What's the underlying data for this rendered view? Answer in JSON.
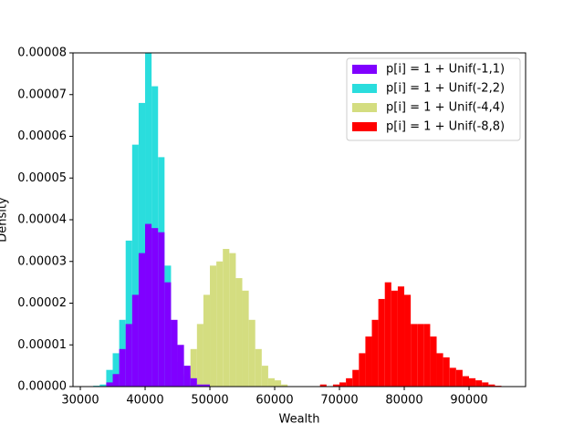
{
  "chart_data": {
    "type": "histogram",
    "x_label": "Wealth",
    "y_label": "Density",
    "xlim": [
      28870,
      98730
    ],
    "ylim": [
      0,
      8e-05
    ],
    "xticks": [
      30000,
      40000,
      50000,
      60000,
      70000,
      80000,
      90000
    ],
    "yticks": [
      {
        "value": 0,
        "label": "0.00000"
      },
      {
        "value": 1e-05,
        "label": "0.00001"
      },
      {
        "value": 2e-05,
        "label": "0.00002"
      },
      {
        "value": 3e-05,
        "label": "0.00003"
      },
      {
        "value": 4e-05,
        "label": "0.00004"
      },
      {
        "value": 5e-05,
        "label": "0.00005"
      },
      {
        "value": 6e-05,
        "label": "0.00006"
      },
      {
        "value": 7e-05,
        "label": "0.00007"
      },
      {
        "value": 8e-05,
        "label": "0.00008"
      }
    ],
    "legend": "upper right",
    "series": [
      {
        "name": "p[i] = 1 + Unif(-1,1)",
        "color": "#8000ff",
        "bins": [
          34000,
          35000,
          36000,
          37000,
          38000,
          39000,
          40000,
          41000,
          42000,
          43000,
          44000,
          45000,
          46000,
          47000,
          48000,
          49000,
          50000
        ],
        "values": [
          1e-06,
          3e-06,
          9e-06,
          1.5e-05,
          2.2e-05,
          3.2e-05,
          3.9e-05,
          3.8e-05,
          3.7e-05,
          2.5e-05,
          1.6e-05,
          1e-05,
          5e-06,
          2e-06,
          5e-07,
          5e-07
        ]
      },
      {
        "name": "p[i] = 1 + Unif(-2,2)",
        "color": "#2adddd",
        "bins": [
          32000,
          33000,
          34000,
          35000,
          36000,
          37000,
          38000,
          39000,
          40000,
          41000,
          42000,
          43000,
          44000,
          45000,
          46000,
          47000,
          48000
        ],
        "values": [
          2e-07,
          5e-07,
          4e-06,
          8e-06,
          1.6e-05,
          3.5e-05,
          5.8e-05,
          6.8e-05,
          8e-05,
          7.2e-05,
          5.5e-05,
          2.9e-05,
          1.5e-05,
          6e-06,
          2.5e-06,
          5e-07
        ]
      },
      {
        "name": "p[i] = 1 + Unif(-4,4)",
        "color": "#d4dd80",
        "bins": [
          45000,
          46000,
          47000,
          48000,
          49000,
          50000,
          51000,
          52000,
          53000,
          54000,
          55000,
          56000,
          57000,
          58000,
          59000,
          60000,
          61000,
          62000
        ],
        "values": [
          1e-06,
          3e-06,
          9e-06,
          1.5e-05,
          2.2e-05,
          2.9e-05,
          3e-05,
          3.3e-05,
          3.2e-05,
          2.6e-05,
          2.3e-05,
          1.6e-05,
          9e-06,
          5e-06,
          2e-06,
          1.5e-06,
          5e-07
        ]
      },
      {
        "name": "p[i] = 1 + Unif(-8,8)",
        "color": "#ff0000",
        "bins": [
          67000,
          68000,
          69000,
          70000,
          71000,
          72000,
          73000,
          74000,
          75000,
          76000,
          77000,
          78000,
          79000,
          80000,
          81000,
          82000,
          83000,
          84000,
          85000,
          86000,
          87000,
          88000,
          89000,
          90000,
          91000,
          92000,
          93000,
          94000,
          95000
        ],
        "values": [
          5e-07,
          0,
          5e-07,
          1e-06,
          2e-06,
          4e-06,
          8e-06,
          1.2e-05,
          1.6e-05,
          2.1e-05,
          2.5e-05,
          2.3e-05,
          2.4e-05,
          2.2e-05,
          1.5e-05,
          1.5e-05,
          1.5e-05,
          1.2e-05,
          8e-06,
          7e-06,
          4.5e-06,
          4e-06,
          2.5e-06,
          2e-06,
          1.5e-06,
          1e-06,
          5e-07,
          2e-07
        ]
      }
    ]
  }
}
